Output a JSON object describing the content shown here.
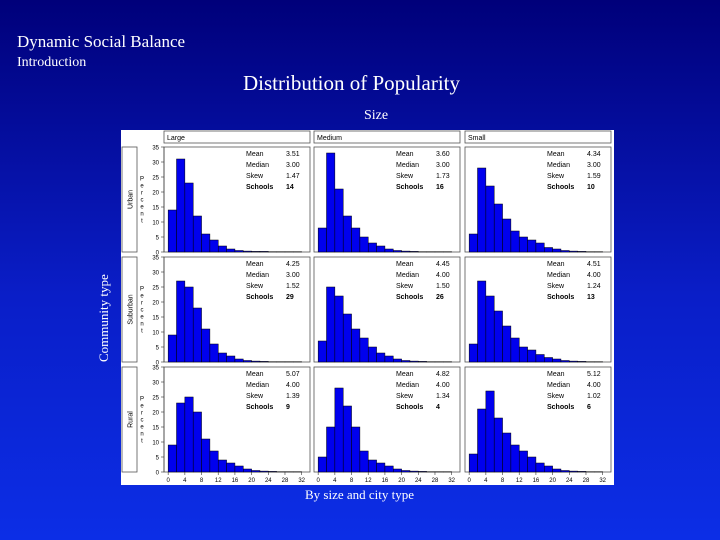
{
  "slide": {
    "header": "Dynamic Social Balance",
    "subheader": "Introduction",
    "title": "Distribution of Popularity",
    "column_group_label": "Size",
    "row_group_label": "Community type",
    "caption": "By size and city type"
  },
  "colors": {
    "background": "#0a1ec8",
    "bar_fill": "#0000ee",
    "bar_edge": "#000000",
    "text": "#ffffff"
  },
  "chart_data": {
    "type": "bar",
    "column_labels": [
      "Large",
      "Medium",
      "Small"
    ],
    "row_labels": [
      "Urban",
      "Suburban",
      "Rural"
    ],
    "y_axis_label": "Percent",
    "y_ticks": [
      0,
      5,
      10,
      15,
      20,
      25,
      30,
      35
    ],
    "ylim": [
      0,
      35
    ],
    "x_ticks": [
      0,
      4,
      8,
      12,
      16,
      20,
      24,
      28,
      32
    ],
    "xlim": [
      -1,
      34
    ],
    "bin_width": 2,
    "stat_labels": [
      "Mean",
      "Median",
      "Skew",
      "Schools"
    ],
    "panels": [
      {
        "row": "Urban",
        "col": "Large",
        "bins": [
          0,
          2,
          4,
          6,
          8,
          10,
          12,
          14,
          16,
          18,
          20,
          22,
          24,
          26,
          28,
          30
        ],
        "values": [
          14,
          31,
          23,
          12,
          6,
          4,
          2,
          1,
          0.5,
          0.3,
          0.2,
          0.2,
          0.1,
          0.1,
          0.1,
          0.1
        ],
        "stats": {
          "mean": "3.51",
          "median": "3.00",
          "skew": "1.47",
          "schools": "14"
        }
      },
      {
        "row": "Urban",
        "col": "Medium",
        "bins": [
          0,
          2,
          4,
          6,
          8,
          10,
          12,
          14,
          16,
          18,
          20,
          22,
          24,
          26,
          28,
          30
        ],
        "values": [
          8,
          33,
          21,
          12,
          8,
          5,
          3,
          2,
          1,
          0.5,
          0.3,
          0.2,
          0.1,
          0.1,
          0.1,
          0.1
        ],
        "stats": {
          "mean": "3.60",
          "median": "3.00",
          "skew": "1.73",
          "schools": "16"
        }
      },
      {
        "row": "Urban",
        "col": "Small",
        "bins": [
          0,
          2,
          4,
          6,
          8,
          10,
          12,
          14,
          16,
          18,
          20,
          22,
          24,
          26,
          28,
          30
        ],
        "values": [
          6,
          28,
          22,
          16,
          11,
          7,
          5,
          4,
          3,
          1.5,
          1,
          0.5,
          0.3,
          0.2,
          0.1,
          0.1
        ],
        "stats": {
          "mean": "4.34",
          "median": "3.00",
          "skew": "1.59",
          "schools": "10"
        }
      },
      {
        "row": "Suburban",
        "col": "Large",
        "bins": [
          0,
          2,
          4,
          6,
          8,
          10,
          12,
          14,
          16,
          18,
          20,
          22,
          24,
          26,
          28,
          30
        ],
        "values": [
          9,
          27,
          25,
          18,
          11,
          6,
          3,
          2,
          1,
          0.5,
          0.3,
          0.2,
          0.1,
          0.1,
          0.1,
          0.1
        ],
        "stats": {
          "mean": "4.25",
          "median": "3.00",
          "skew": "1.52",
          "schools": "29"
        }
      },
      {
        "row": "Suburban",
        "col": "Medium",
        "bins": [
          0,
          2,
          4,
          6,
          8,
          10,
          12,
          14,
          16,
          18,
          20,
          22,
          24,
          26,
          28,
          30
        ],
        "values": [
          7,
          25,
          22,
          16,
          11,
          8,
          5,
          3,
          2,
          1,
          0.5,
          0.3,
          0.2,
          0.1,
          0.1,
          0.1
        ],
        "stats": {
          "mean": "4.45",
          "median": "4.00",
          "skew": "1.50",
          "schools": "26"
        }
      },
      {
        "row": "Suburban",
        "col": "Small",
        "bins": [
          0,
          2,
          4,
          6,
          8,
          10,
          12,
          14,
          16,
          18,
          20,
          22,
          24,
          26,
          28,
          30
        ],
        "values": [
          6,
          27,
          22,
          17,
          12,
          8,
          5,
          4,
          2.5,
          1.5,
          1,
          0.5,
          0.3,
          0.2,
          0.1,
          0.1
        ],
        "stats": {
          "mean": "4.51",
          "median": "4.00",
          "skew": "1.24",
          "schools": "13"
        }
      },
      {
        "row": "Rural",
        "col": "Large",
        "bins": [
          0,
          2,
          4,
          6,
          8,
          10,
          12,
          14,
          16,
          18,
          20,
          22,
          24,
          26,
          28,
          30
        ],
        "values": [
          9,
          23,
          25,
          20,
          11,
          7,
          4,
          3,
          2,
          1,
          0.5,
          0.3,
          0.2,
          0.1,
          0.1,
          0.1
        ],
        "stats": {
          "mean": "5.07",
          "median": "4.00",
          "skew": "1.39",
          "schools": "9"
        }
      },
      {
        "row": "Rural",
        "col": "Medium",
        "bins": [
          0,
          2,
          4,
          6,
          8,
          10,
          12,
          14,
          16,
          18,
          20,
          22,
          24,
          26,
          28,
          30
        ],
        "values": [
          5,
          15,
          28,
          22,
          15,
          7,
          4,
          3,
          2,
          1,
          0.5,
          0.3,
          0.2,
          0.1,
          0.1,
          0.1
        ],
        "stats": {
          "mean": "4.82",
          "median": "4.00",
          "skew": "1.34",
          "schools": "4"
        }
      },
      {
        "row": "Rural",
        "col": "Small",
        "bins": [
          0,
          2,
          4,
          6,
          8,
          10,
          12,
          14,
          16,
          18,
          20,
          22,
          24,
          26,
          28,
          30
        ],
        "values": [
          6,
          21,
          27,
          18,
          13,
          9,
          7,
          5,
          3,
          2,
          1,
          0.5,
          0.3,
          0.2,
          0.1,
          0.1
        ],
        "stats": {
          "mean": "5.12",
          "median": "4.00",
          "skew": "1.02",
          "schools": "6"
        }
      }
    ]
  }
}
